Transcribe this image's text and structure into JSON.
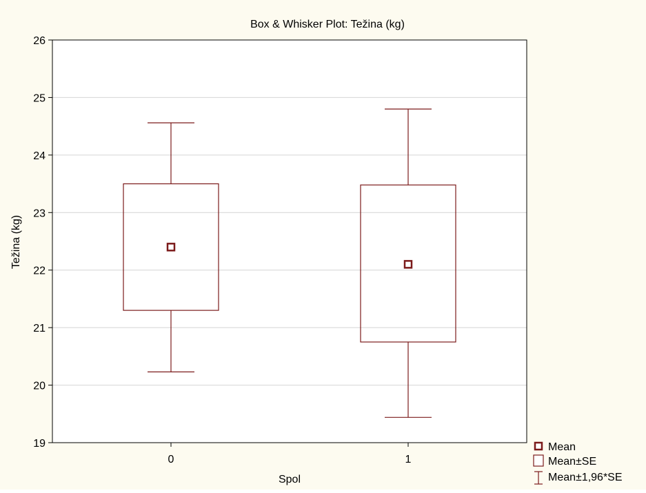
{
  "chart_data": {
    "type": "box",
    "title": "Box & Whisker Plot: Težina (kg)",
    "xlabel": "Spol",
    "ylabel": "Težina (kg)",
    "categories": [
      "0",
      "1"
    ],
    "series": [
      {
        "category": "0",
        "mean": 22.4,
        "box_low": 21.3,
        "box_high": 23.5,
        "whisker_low": 20.23,
        "whisker_high": 24.56
      },
      {
        "category": "1",
        "mean": 22.1,
        "box_low": 20.75,
        "box_high": 23.48,
        "whisker_low": 19.44,
        "whisker_high": 24.8
      }
    ],
    "ylim": [
      19,
      26
    ],
    "yticks": [
      19,
      20,
      21,
      22,
      23,
      24,
      25,
      26
    ],
    "grid": true,
    "legend": {
      "placement": "bottom-right",
      "entries": [
        "Mean",
        "Mean±SE",
        "Mean±1,96*SE"
      ]
    },
    "colors": {
      "series": "#7b1a1a",
      "grid": "#d4d4d4",
      "background": "#ffffff",
      "page": "#fdfbf0",
      "frame": "#000000"
    }
  }
}
